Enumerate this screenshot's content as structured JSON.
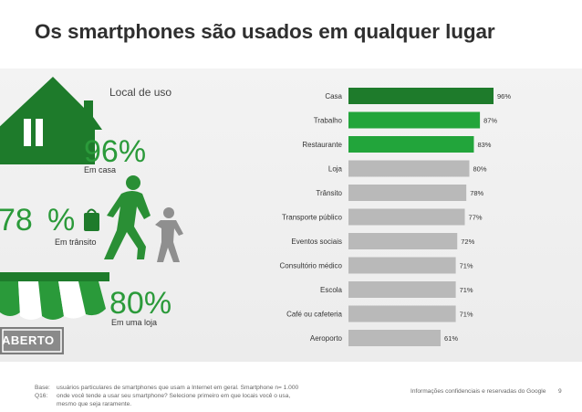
{
  "title": "Os smartphones são usados em qualquer lugar",
  "left": {
    "section_label": "Local de uso",
    "home_value": "96%",
    "home_caption": "Em casa",
    "transit_value": "78",
    "transit_pct": "%",
    "transit_caption": "Em trânsito",
    "store_value": "80%",
    "store_caption": "Em uma loja",
    "store_sign": "ABERTO"
  },
  "colors": {
    "dark_green": "#1e7b2b",
    "green": "#22a53b",
    "gray": "#b9b9b9",
    "accent_text": "#2b9a3a"
  },
  "chart_data": {
    "type": "bar",
    "orientation": "horizontal",
    "categories": [
      "Casa",
      "Trabalho",
      "Restaurante",
      "Loja",
      "Trânsito",
      "Transporte público",
      "Eventos sociais",
      "Consultório médico",
      "Escola",
      "Café ou cafeteria",
      "Aeroporto"
    ],
    "values": [
      96,
      87,
      83,
      80,
      78,
      77,
      72,
      71,
      71,
      71,
      61
    ],
    "value_labels": [
      "96%",
      "87%",
      "83%",
      "80%",
      "78%",
      "77%",
      "72%",
      "71%",
      "71%",
      "71%",
      "61%"
    ],
    "bar_colors": [
      "dark_green",
      "green",
      "green",
      "gray",
      "gray",
      "gray",
      "gray",
      "gray",
      "gray",
      "gray",
      "gray"
    ],
    "xlim": [
      0,
      100
    ]
  },
  "footer": {
    "base_label": "Base:",
    "base_text": "usuários particulares de smartphones que usam a Internet em geral. Smartphone n= 1.000",
    "q_label": "Q16:",
    "q_text_1": "onde você tende a usar seu smartphone? Selecione primeiro em que locais você o usa,",
    "q_text_2": "mesmo que seja raramente.",
    "confidential": "Informações confidenciais e reservadas do Google",
    "page": "9"
  }
}
